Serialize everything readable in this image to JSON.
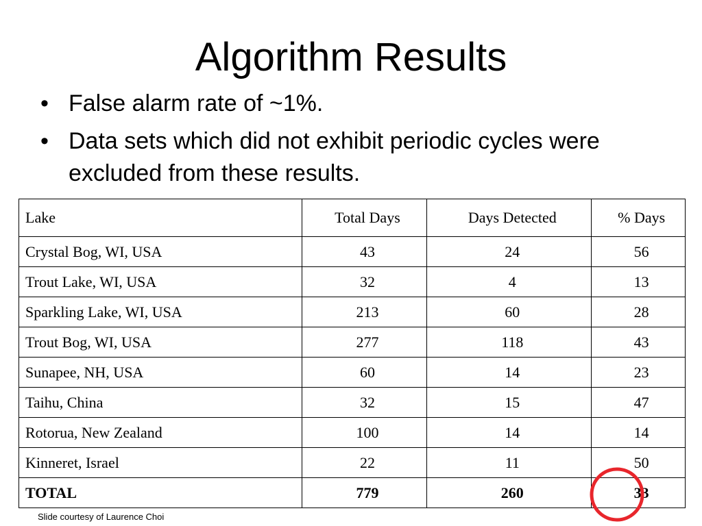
{
  "header": {
    "title": "Algorithm Results"
  },
  "bullets": [
    "False alarm rate of ~1%.",
    "Data sets which did not exhibit periodic cycles were excluded from these results."
  ],
  "table": {
    "columns": [
      "Lake",
      "Total Days",
      "Days Detected",
      "% Days"
    ],
    "rows": [
      [
        "Crystal Bog, WI, USA",
        43,
        24,
        56
      ],
      [
        "Trout Lake, WI, USA",
        32,
        4,
        13
      ],
      [
        "Sparkling Lake, WI, USA",
        213,
        60,
        28
      ],
      [
        "Trout Bog, WI, USA",
        277,
        118,
        43
      ],
      [
        "Sunapee, NH, USA",
        60,
        14,
        23
      ],
      [
        "Taihu, China",
        32,
        15,
        47
      ],
      [
        "Rotorua, New Zealand",
        100,
        14,
        14
      ],
      [
        "Kinneret, Israel",
        22,
        11,
        50
      ]
    ],
    "total": [
      "TOTAL",
      779,
      260,
      33
    ]
  },
  "footer": "Slide courtesy of Laurence Choi"
}
